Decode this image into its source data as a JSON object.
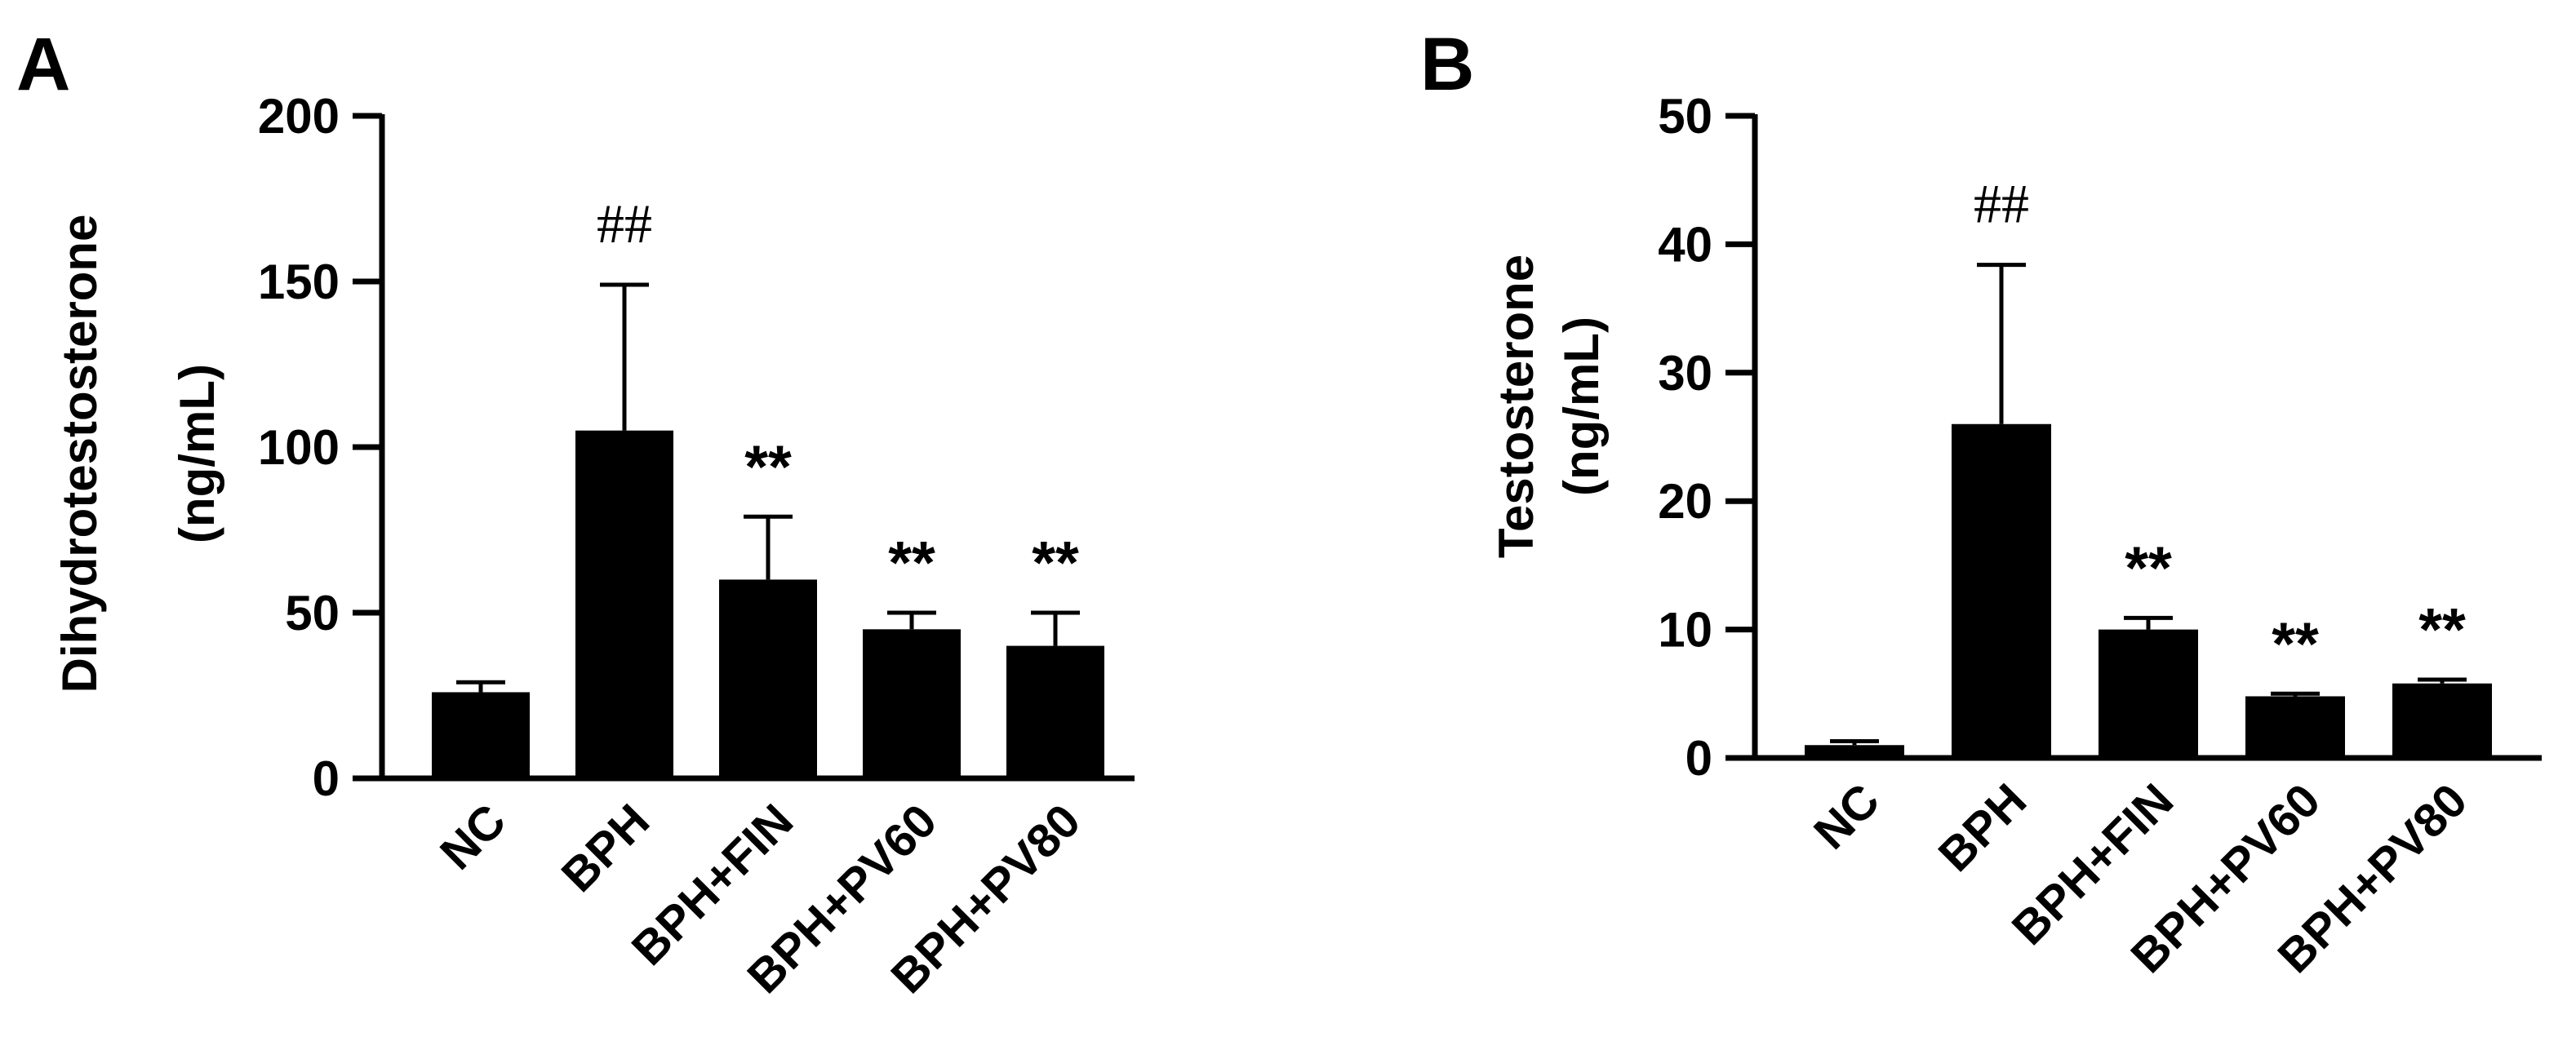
{
  "panels": [
    {
      "letter": "A"
    },
    {
      "letter": "B"
    }
  ],
  "chart_data": [
    {
      "type": "bar",
      "title": "",
      "xlabel": "",
      "ylabel": [
        "Dihydrotestosterone",
        "(ng/mL)"
      ],
      "ylim": [
        0,
        200
      ],
      "yticks": [
        0,
        50,
        100,
        150,
        200
      ],
      "categories": [
        "NC",
        "BPH",
        "BPH+FIN",
        "BPH+PV60",
        "BPH+PV80"
      ],
      "values": [
        26,
        105,
        60,
        45,
        40
      ],
      "errors": [
        3,
        44,
        19,
        5,
        10
      ],
      "annotations": [
        "",
        "##",
        "**",
        "**",
        "**"
      ],
      "bar_color": "#000000",
      "grid": false,
      "legend": "none"
    },
    {
      "type": "bar",
      "title": "",
      "xlabel": "",
      "ylabel": [
        "Testosterone",
        "(ng/mL)"
      ],
      "ylim": [
        0,
        50
      ],
      "yticks": [
        0,
        10,
        20,
        30,
        40,
        50
      ],
      "categories": [
        "NC",
        "BPH",
        "BPH+FIN",
        "BPH+PV60",
        "BPH+PV80"
      ],
      "values": [
        1.0,
        26.0,
        10.0,
        4.8,
        5.8
      ],
      "errors": [
        0.3,
        12.4,
        0.9,
        0.2,
        0.3
      ],
      "annotations": [
        "",
        "##",
        "**",
        "**",
        "**"
      ],
      "bar_color": "#000000",
      "grid": false,
      "legend": "none"
    }
  ]
}
